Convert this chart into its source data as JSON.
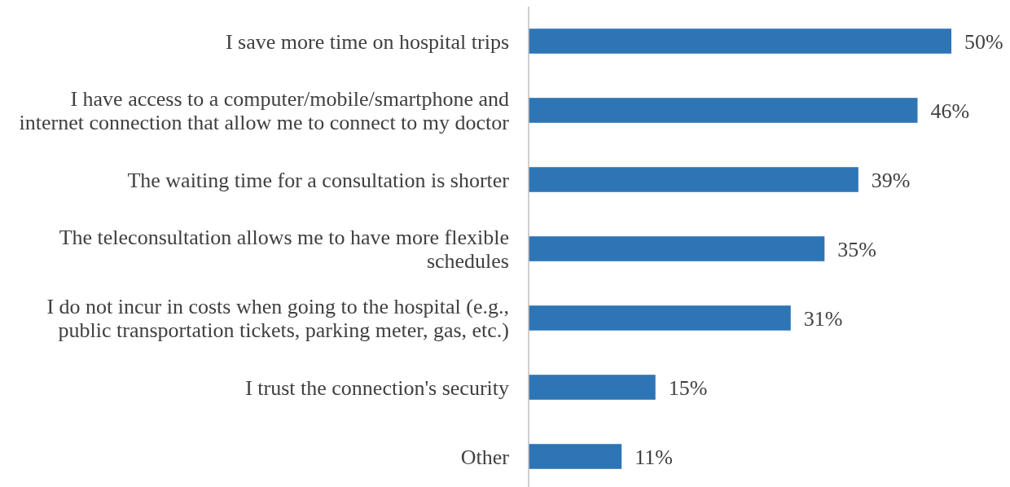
{
  "chart_data": {
    "type": "bar",
    "orientation": "horizontal",
    "categories": [
      "I save more time on hospital trips",
      "I have access to a computer/mobile/smartphone and internet connection that allow me to connect to my doctor",
      "The waiting time for a consultation is shorter",
      "The teleconsultation allows me to have more flexible schedules",
      "I do not incur in costs when going to the hospital (e.g., public transportation tickets, parking meter, gas, etc.)",
      "I trust the connection's security",
      "Other"
    ],
    "values": [
      50,
      46,
      39,
      35,
      31,
      15,
      11
    ],
    "value_labels": [
      "50%",
      "46%",
      "39%",
      "35%",
      "31%",
      "15%",
      "11%"
    ],
    "color": "#2e75b6"
  }
}
